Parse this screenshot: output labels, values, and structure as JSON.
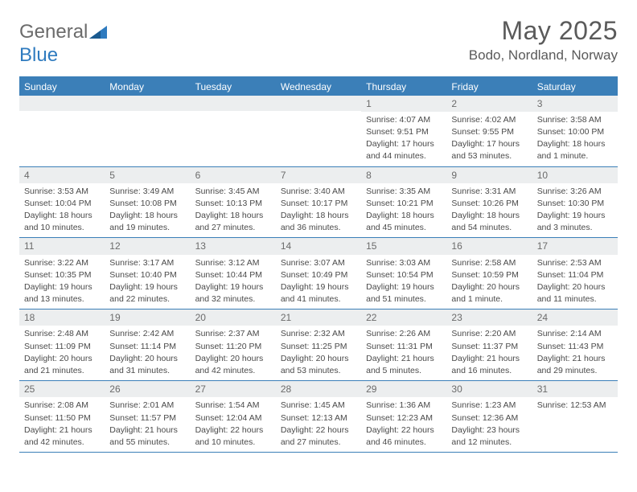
{
  "logo": {
    "word1": "General",
    "word2": "Blue"
  },
  "title": "May 2025",
  "location": "Bodo, Nordland, Norway",
  "colors": {
    "header_bg": "#3b7fb8",
    "header_text": "#ffffff",
    "daynum_bg": "#eceeef",
    "text": "#4a4a4a",
    "rule": "#3b7fb8"
  },
  "weekdays": [
    "Sunday",
    "Monday",
    "Tuesday",
    "Wednesday",
    "Thursday",
    "Friday",
    "Saturday"
  ],
  "weeks": [
    [
      null,
      null,
      null,
      null,
      {
        "n": "1",
        "sr": "Sunrise: 4:07 AM",
        "ss": "Sunset: 9:51 PM",
        "dl1": "Daylight: 17 hours",
        "dl2": "and 44 minutes."
      },
      {
        "n": "2",
        "sr": "Sunrise: 4:02 AM",
        "ss": "Sunset: 9:55 PM",
        "dl1": "Daylight: 17 hours",
        "dl2": "and 53 minutes."
      },
      {
        "n": "3",
        "sr": "Sunrise: 3:58 AM",
        "ss": "Sunset: 10:00 PM",
        "dl1": "Daylight: 18 hours",
        "dl2": "and 1 minute."
      }
    ],
    [
      {
        "n": "4",
        "sr": "Sunrise: 3:53 AM",
        "ss": "Sunset: 10:04 PM",
        "dl1": "Daylight: 18 hours",
        "dl2": "and 10 minutes."
      },
      {
        "n": "5",
        "sr": "Sunrise: 3:49 AM",
        "ss": "Sunset: 10:08 PM",
        "dl1": "Daylight: 18 hours",
        "dl2": "and 19 minutes."
      },
      {
        "n": "6",
        "sr": "Sunrise: 3:45 AM",
        "ss": "Sunset: 10:13 PM",
        "dl1": "Daylight: 18 hours",
        "dl2": "and 27 minutes."
      },
      {
        "n": "7",
        "sr": "Sunrise: 3:40 AM",
        "ss": "Sunset: 10:17 PM",
        "dl1": "Daylight: 18 hours",
        "dl2": "and 36 minutes."
      },
      {
        "n": "8",
        "sr": "Sunrise: 3:35 AM",
        "ss": "Sunset: 10:21 PM",
        "dl1": "Daylight: 18 hours",
        "dl2": "and 45 minutes."
      },
      {
        "n": "9",
        "sr": "Sunrise: 3:31 AM",
        "ss": "Sunset: 10:26 PM",
        "dl1": "Daylight: 18 hours",
        "dl2": "and 54 minutes."
      },
      {
        "n": "10",
        "sr": "Sunrise: 3:26 AM",
        "ss": "Sunset: 10:30 PM",
        "dl1": "Daylight: 19 hours",
        "dl2": "and 3 minutes."
      }
    ],
    [
      {
        "n": "11",
        "sr": "Sunrise: 3:22 AM",
        "ss": "Sunset: 10:35 PM",
        "dl1": "Daylight: 19 hours",
        "dl2": "and 13 minutes."
      },
      {
        "n": "12",
        "sr": "Sunrise: 3:17 AM",
        "ss": "Sunset: 10:40 PM",
        "dl1": "Daylight: 19 hours",
        "dl2": "and 22 minutes."
      },
      {
        "n": "13",
        "sr": "Sunrise: 3:12 AM",
        "ss": "Sunset: 10:44 PM",
        "dl1": "Daylight: 19 hours",
        "dl2": "and 32 minutes."
      },
      {
        "n": "14",
        "sr": "Sunrise: 3:07 AM",
        "ss": "Sunset: 10:49 PM",
        "dl1": "Daylight: 19 hours",
        "dl2": "and 41 minutes."
      },
      {
        "n": "15",
        "sr": "Sunrise: 3:03 AM",
        "ss": "Sunset: 10:54 PM",
        "dl1": "Daylight: 19 hours",
        "dl2": "and 51 minutes."
      },
      {
        "n": "16",
        "sr": "Sunrise: 2:58 AM",
        "ss": "Sunset: 10:59 PM",
        "dl1": "Daylight: 20 hours",
        "dl2": "and 1 minute."
      },
      {
        "n": "17",
        "sr": "Sunrise: 2:53 AM",
        "ss": "Sunset: 11:04 PM",
        "dl1": "Daylight: 20 hours",
        "dl2": "and 11 minutes."
      }
    ],
    [
      {
        "n": "18",
        "sr": "Sunrise: 2:48 AM",
        "ss": "Sunset: 11:09 PM",
        "dl1": "Daylight: 20 hours",
        "dl2": "and 21 minutes."
      },
      {
        "n": "19",
        "sr": "Sunrise: 2:42 AM",
        "ss": "Sunset: 11:14 PM",
        "dl1": "Daylight: 20 hours",
        "dl2": "and 31 minutes."
      },
      {
        "n": "20",
        "sr": "Sunrise: 2:37 AM",
        "ss": "Sunset: 11:20 PM",
        "dl1": "Daylight: 20 hours",
        "dl2": "and 42 minutes."
      },
      {
        "n": "21",
        "sr": "Sunrise: 2:32 AM",
        "ss": "Sunset: 11:25 PM",
        "dl1": "Daylight: 20 hours",
        "dl2": "and 53 minutes."
      },
      {
        "n": "22",
        "sr": "Sunrise: 2:26 AM",
        "ss": "Sunset: 11:31 PM",
        "dl1": "Daylight: 21 hours",
        "dl2": "and 5 minutes."
      },
      {
        "n": "23",
        "sr": "Sunrise: 2:20 AM",
        "ss": "Sunset: 11:37 PM",
        "dl1": "Daylight: 21 hours",
        "dl2": "and 16 minutes."
      },
      {
        "n": "24",
        "sr": "Sunrise: 2:14 AM",
        "ss": "Sunset: 11:43 PM",
        "dl1": "Daylight: 21 hours",
        "dl2": "and 29 minutes."
      }
    ],
    [
      {
        "n": "25",
        "sr": "Sunrise: 2:08 AM",
        "ss": "Sunset: 11:50 PM",
        "dl1": "Daylight: 21 hours",
        "dl2": "and 42 minutes."
      },
      {
        "n": "26",
        "sr": "Sunrise: 2:01 AM",
        "ss": "Sunset: 11:57 PM",
        "dl1": "Daylight: 21 hours",
        "dl2": "and 55 minutes."
      },
      {
        "n": "27",
        "sr": "Sunrise: 1:54 AM",
        "ss": "Sunset: 12:04 AM",
        "dl1": "Daylight: 22 hours",
        "dl2": "and 10 minutes."
      },
      {
        "n": "28",
        "sr": "Sunrise: 1:45 AM",
        "ss": "Sunset: 12:13 AM",
        "dl1": "Daylight: 22 hours",
        "dl2": "and 27 minutes."
      },
      {
        "n": "29",
        "sr": "Sunrise: 1:36 AM",
        "ss": "Sunset: 12:23 AM",
        "dl1": "Daylight: 22 hours",
        "dl2": "and 46 minutes."
      },
      {
        "n": "30",
        "sr": "Sunrise: 1:23 AM",
        "ss": "Sunset: 12:36 AM",
        "dl1": "Daylight: 23 hours",
        "dl2": "and 12 minutes."
      },
      {
        "n": "31",
        "sr": "Sunrise: 12:53 AM",
        "ss": "",
        "dl1": "",
        "dl2": ""
      }
    ]
  ]
}
